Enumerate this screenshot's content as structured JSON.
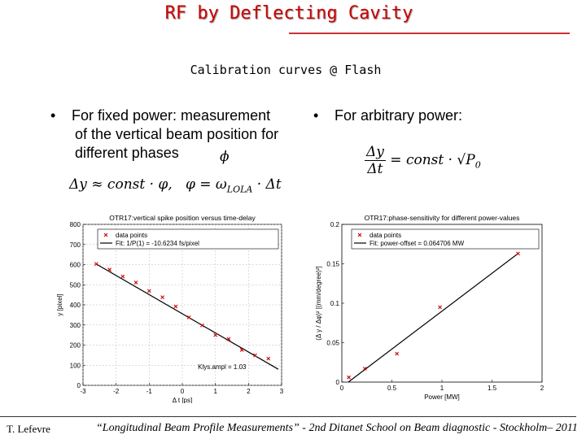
{
  "slide": {
    "title": "RF by Deflecting Cavity",
    "subtitle": "Calibration curves @ Flash",
    "bullet_left_1": "For fixed power: measurement",
    "bullet_left_2": "of the vertical beam position for",
    "bullet_left_3": "different phases",
    "bullet_right": "For arbitrary power:",
    "bullet_char": "•",
    "formula_left_a": "Δy ≈ const · φ,",
    "formula_left_b": "φ = ω",
    "formula_left_sub": "LOLA",
    "formula_left_c": " · Δt",
    "phi_symbol": "ϕ",
    "formula_right_num": "Δy",
    "formula_right_den": "Δt",
    "formula_right_rest": "= const · √P",
    "formula_right_sub": "0",
    "footer_left": "T. Lefevre",
    "footer_right": "“Longitudinal Beam Profile Measurements” - 2nd Ditanet School on Beam diagnostic - Stockholm– 2011"
  },
  "colors": {
    "title": "#cc0000",
    "marker": "#cc0000",
    "line": "#000000"
  },
  "chart_data": [
    {
      "type": "scatter",
      "title": "OTR17:vertical spike position versus time-delay",
      "xlabel": "Δ t [ps]",
      "ylabel": "y [pixel]",
      "xlim": [
        -3,
        3
      ],
      "ylim": [
        0,
        800
      ],
      "xticks": [
        -3,
        -2,
        -1,
        0,
        1,
        2,
        3
      ],
      "yticks": [
        0,
        100,
        200,
        300,
        400,
        500,
        600,
        700,
        800
      ],
      "grid": true,
      "legend": [
        "data points",
        "Fit: 1/P(1) = -10.6234 fs/pixel"
      ],
      "legend_position": "top-right",
      "annotation": "Klys.ampl = 1.03",
      "series": [
        {
          "name": "data points",
          "x": [
            -2.6,
            -2.2,
            -1.8,
            -1.4,
            -1.0,
            -0.6,
            -0.2,
            0.2,
            0.6,
            1.0,
            1.4,
            1.8,
            2.2,
            2.6
          ],
          "y": [
            603,
            575,
            541,
            511,
            469,
            438,
            392,
            338,
            298,
            250,
            230,
            176,
            149,
            133
          ]
        },
        {
          "name": "Fit: 1/P(1) = -10.6234 fs/pixel",
          "x": [
            -2.6,
            2.9
          ],
          "y": [
            603,
            80
          ]
        }
      ]
    },
    {
      "type": "scatter",
      "title": "OTR17:phase-sensitivity for different power-values",
      "xlabel": "Power [MW]",
      "ylabel": "(Δ y / Δφ)² [(mm/degree)²]",
      "xlim": [
        0,
        2
      ],
      "ylim": [
        0,
        0.2
      ],
      "xticks": [
        0,
        0.5,
        1,
        1.5,
        2
      ],
      "yticks": [
        0,
        0.05,
        0.1,
        0.15,
        0.2
      ],
      "grid": false,
      "legend": [
        "data points",
        "Fit: power-offset = 0.064706 MW"
      ],
      "legend_position": "top-left",
      "series": [
        {
          "name": "data points",
          "x": [
            0.07,
            0.23,
            0.55,
            0.98,
            1.76
          ],
          "y": [
            0.006,
            0.017,
            0.036,
            0.095,
            0.163
          ]
        },
        {
          "name": "Fit: power-offset = 0.064706 MW",
          "x": [
            0.0647,
            1.76
          ],
          "y": [
            0.0,
            0.163
          ]
        }
      ]
    }
  ]
}
